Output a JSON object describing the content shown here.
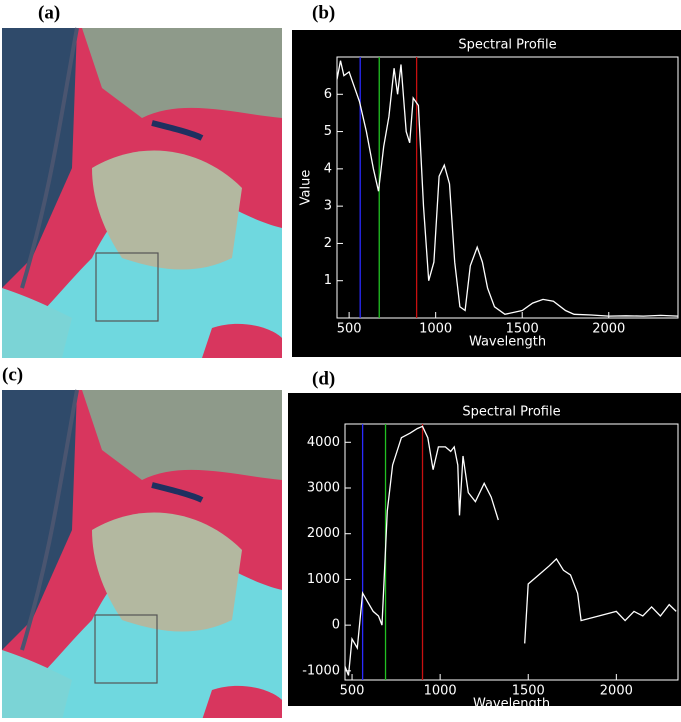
{
  "figure": {
    "labels": [
      "(a)",
      "(b)",
      "(c)",
      "(d)"
    ]
  },
  "chart_data": [
    {
      "type": "line",
      "title": "Spectral Profile",
      "x_label": "Wavelength",
      "y_label": "Value",
      "xlim": [
        430,
        2400
      ],
      "xticks": [
        500,
        1000,
        1500,
        2000
      ],
      "ylim": [
        0,
        7
      ],
      "yticks": [
        1,
        2,
        3,
        4,
        5,
        6
      ],
      "band_markers": [
        {
          "value": 564,
          "color": "#2a2aff"
        },
        {
          "value": 674,
          "color": "#22c022"
        },
        {
          "value": 890,
          "color": "#c81010"
        }
      ],
      "series": [
        {
          "color": "#ffffff",
          "x": [
            430,
            450,
            470,
            500,
            530,
            560,
            600,
            640,
            670,
            700,
            730,
            760,
            780,
            800,
            830,
            850,
            870,
            900,
            930,
            960,
            990,
            1020,
            1050,
            1080,
            1110,
            1140,
            1170,
            1200,
            1240,
            1270,
            1300,
            1340,
            1400,
            1500,
            1560,
            1620,
            1680,
            1750,
            1800,
            1900,
            2000,
            2100,
            2200,
            2300,
            2400
          ],
          "values": [
            6.4,
            6.9,
            6.5,
            6.6,
            6.2,
            5.8,
            5.0,
            4.0,
            3.4,
            4.6,
            5.4,
            6.7,
            6.0,
            6.8,
            5.0,
            4.7,
            5.9,
            5.7,
            3.0,
            1.0,
            1.5,
            3.8,
            4.1,
            3.6,
            1.5,
            0.3,
            0.2,
            1.4,
            1.9,
            1.5,
            0.8,
            0.3,
            0.1,
            0.2,
            0.4,
            0.5,
            0.45,
            0.2,
            0.1,
            0.08,
            0.05,
            0.06,
            0.05,
            0.07,
            0.05
          ]
        }
      ]
    },
    {
      "type": "line",
      "title": "Spectral Profile",
      "x_label": "Wavelength",
      "xlim": [
        460,
        2350
      ],
      "xticks": [
        500,
        1000,
        1500,
        2000
      ],
      "ylim": [
        -1200,
        4400
      ],
      "yticks": [
        -1000,
        0,
        1000,
        2000,
        3000,
        4000
      ],
      "band_markers": [
        {
          "value": 560,
          "color": "#2a2aff"
        },
        {
          "value": 690,
          "color": "#22c022"
        },
        {
          "value": 900,
          "color": "#c81010"
        }
      ],
      "series": [
        {
          "color": "#ffffff",
          "x": [
            460,
            480,
            500,
            530,
            560,
            590,
            620,
            650,
            670,
            700,
            730,
            780,
            830,
            870,
            900,
            930,
            960,
            990,
            1030,
            1060,
            1080,
            1100,
            1110,
            1130,
            1160,
            1200,
            1250,
            1290,
            1330,
            1400,
            1480,
            1500,
            1560,
            1620,
            1660,
            1700,
            1740,
            1780,
            1800,
            1900,
            2000,
            2050,
            2100,
            2150,
            2200,
            2250,
            2300,
            2340
          ],
          "values": [
            -900,
            -1100,
            -300,
            -500,
            700,
            500,
            300,
            200,
            0,
            2500,
            3500,
            4100,
            4200,
            4300,
            4350,
            4100,
            3400,
            3900,
            3900,
            3800,
            3900,
            3500,
            2400,
            3700,
            2900,
            2700,
            3100,
            2800,
            2300,
            null,
            -400,
            900,
            1100,
            1300,
            1450,
            1200,
            1100,
            700,
            100,
            200,
            300,
            100,
            300,
            200,
            400,
            200,
            450,
            300
          ]
        }
      ]
    }
  ]
}
